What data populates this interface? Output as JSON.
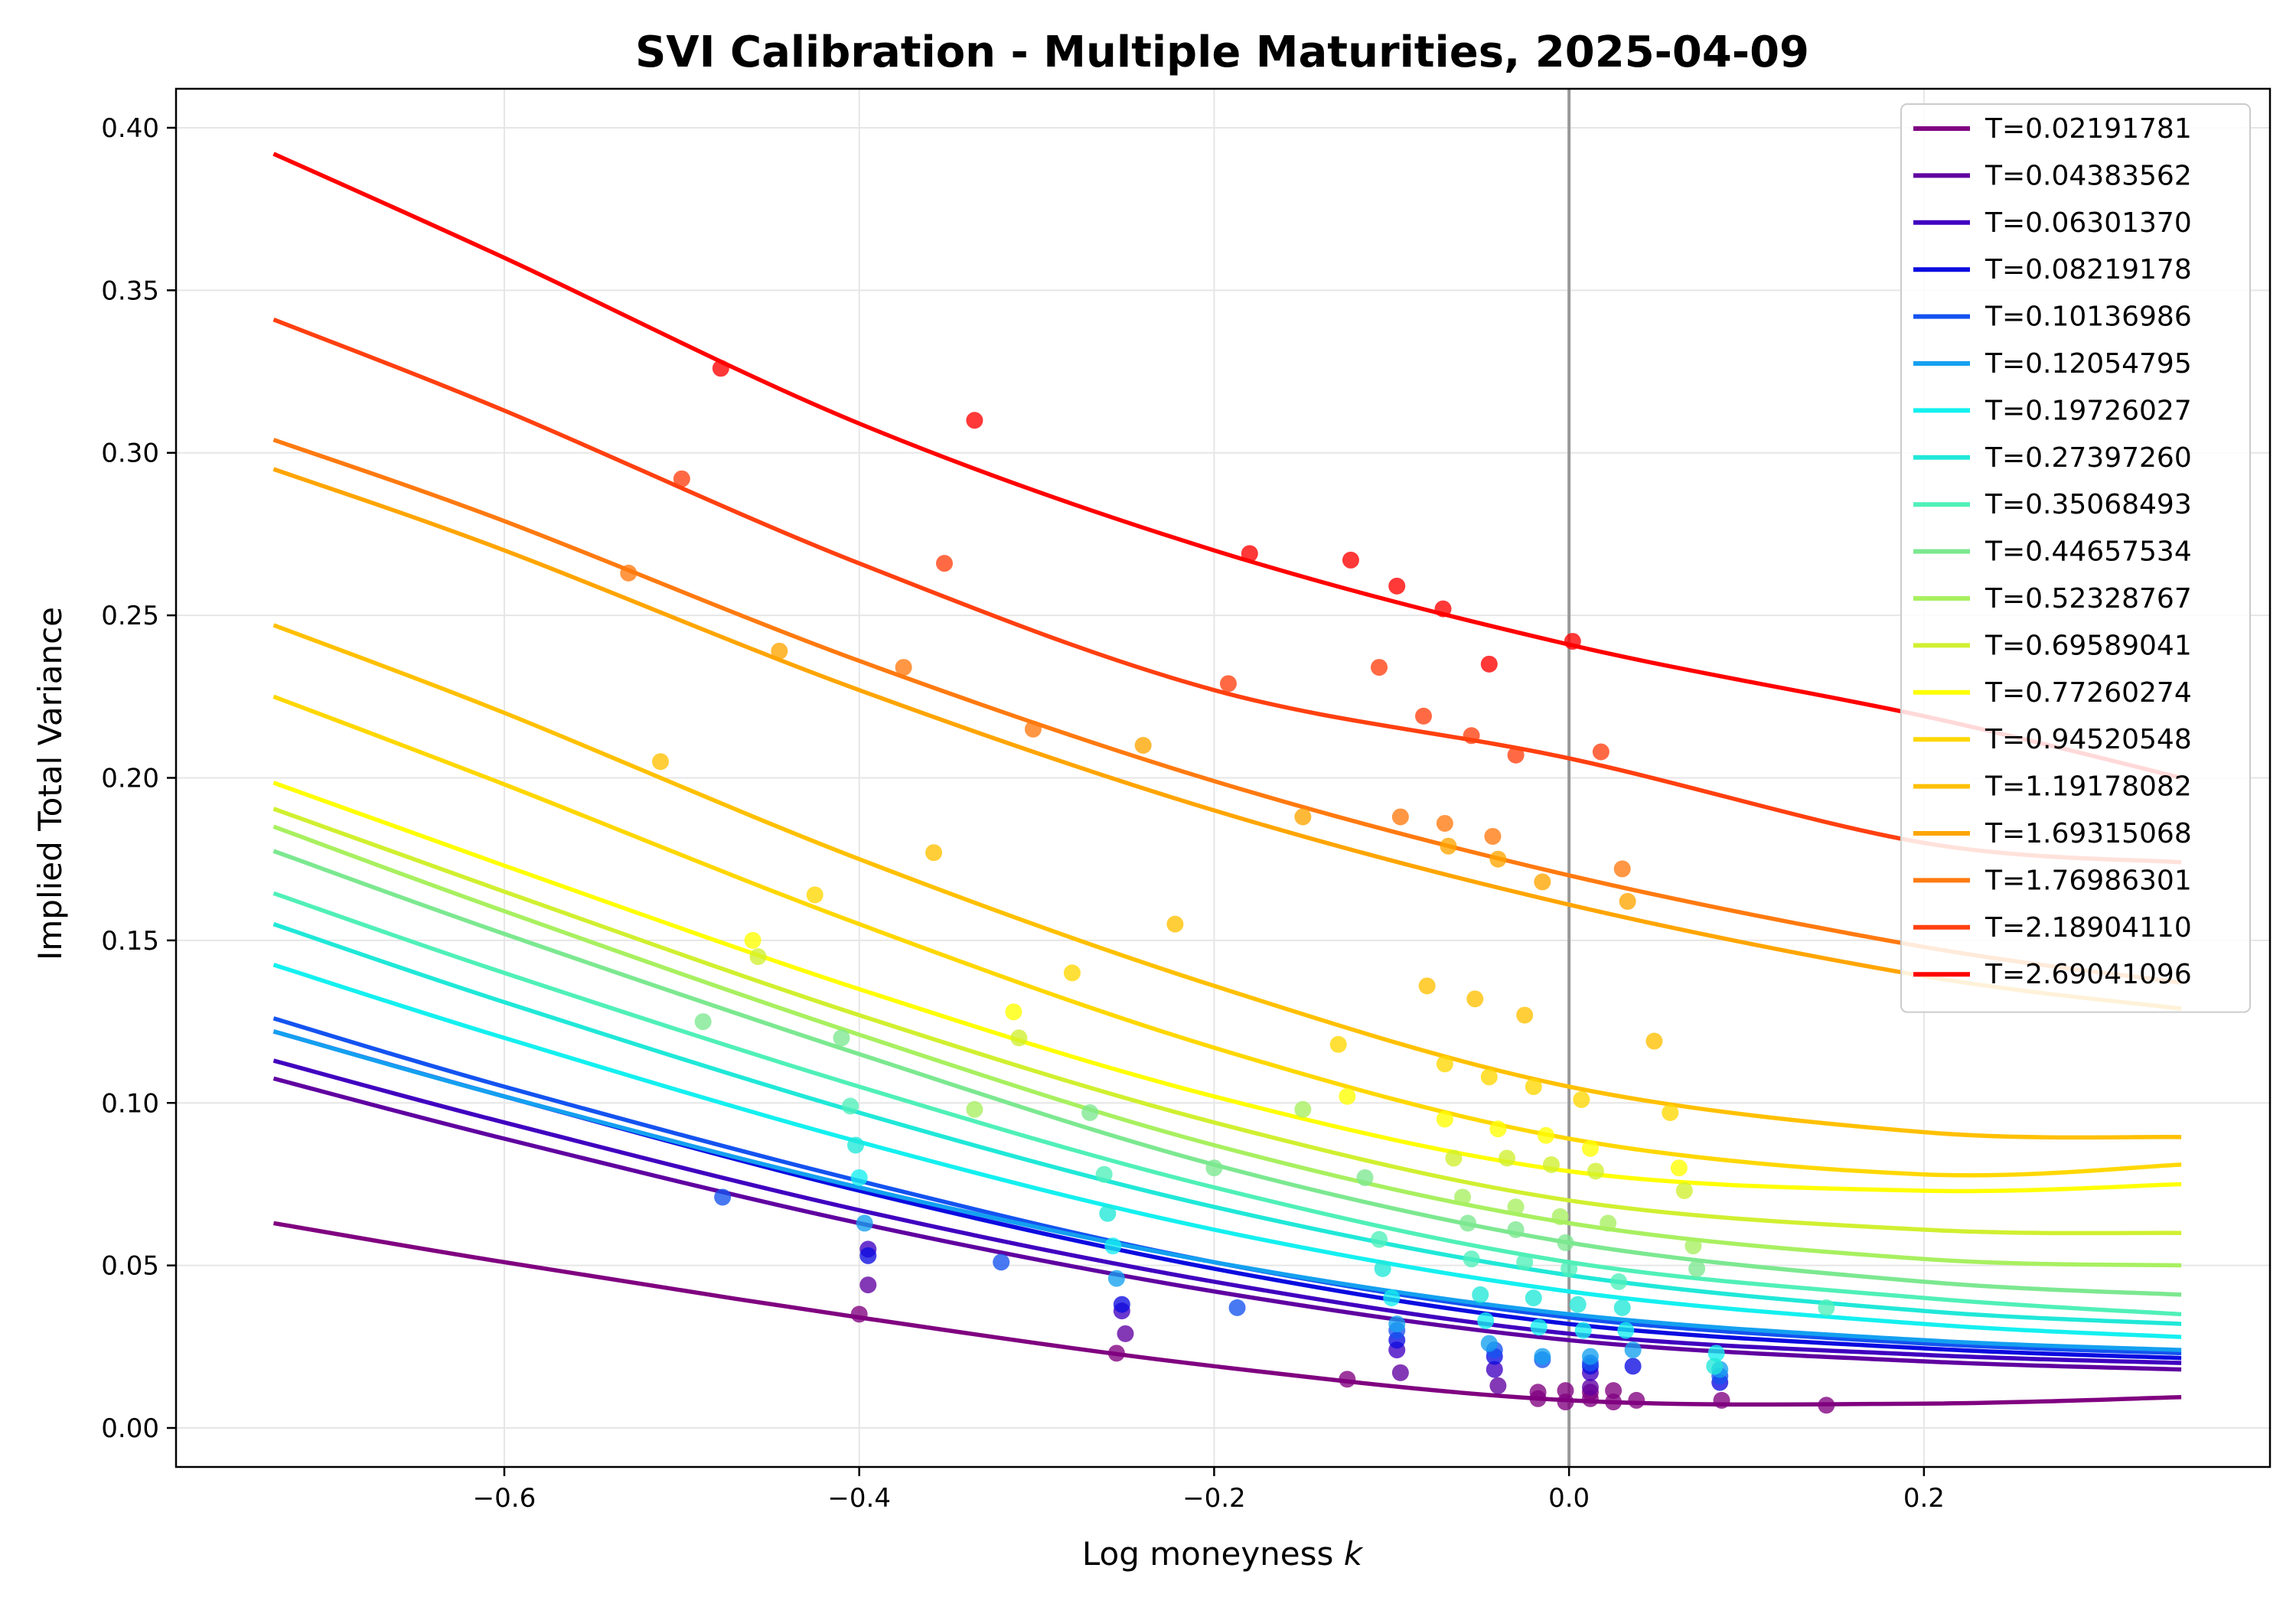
{
  "chart_data": {
    "type": "line",
    "title": "SVI Calibration - Multiple Maturities, 2025-04-09",
    "xlabel": "Log moneyness",
    "xlabel_var": "k",
    "ylabel": "Implied Total Variance",
    "xlim": [
      -0.785,
      0.395
    ],
    "ylim": [
      -0.012,
      0.412
    ],
    "xticks": [
      -0.6,
      -0.4,
      -0.2,
      0.0,
      0.2
    ],
    "xtick_labels": [
      "−0.6",
      "−0.4",
      "−0.2",
      "0.0",
      "0.2"
    ],
    "yticks": [
      0.0,
      0.05,
      0.1,
      0.15,
      0.2,
      0.25,
      0.3,
      0.35,
      0.4
    ],
    "ytick_labels": [
      "0.00",
      "0.05",
      "0.10",
      "0.15",
      "0.20",
      "0.25",
      "0.30",
      "0.35",
      "0.40"
    ],
    "grid": true,
    "vline_x": 0.0,
    "legend_position": "top-right",
    "x_curve": [
      -0.73,
      -0.6,
      -0.4,
      -0.2,
      0.0,
      0.2,
      0.345
    ],
    "series": [
      {
        "name": "T=0.02191781",
        "color": "#800080",
        "curve": [
          0.063,
          0.051,
          0.034,
          0.019,
          0.0085,
          0.0075,
          0.0095
        ],
        "points": [
          [
            -0.4,
            0.035
          ],
          [
            -0.255,
            0.023
          ],
          [
            -0.125,
            0.015
          ],
          [
            -0.0175,
            0.011
          ],
          [
            -0.0175,
            0.009
          ],
          [
            -0.002,
            0.0115
          ],
          [
            -0.002,
            0.008
          ],
          [
            0.012,
            0.011
          ],
          [
            0.012,
            0.009
          ],
          [
            0.025,
            0.0115
          ],
          [
            0.025,
            0.008
          ],
          [
            0.038,
            0.0085
          ],
          [
            0.086,
            0.0085
          ],
          [
            0.145,
            0.007
          ]
        ]
      },
      {
        "name": "T=0.04383562",
        "color": "#6000a0",
        "curve": [
          0.1075,
          0.089,
          0.063,
          0.042,
          0.027,
          0.0205,
          0.018
        ],
        "points": [
          [
            -0.395,
            0.044
          ],
          [
            -0.25,
            0.029
          ],
          [
            -0.095,
            0.017
          ],
          [
            -0.04,
            0.013
          ],
          [
            0.012,
            0.0125
          ]
        ]
      },
      {
        "name": "T=0.06301370",
        "color": "#4000c0",
        "curve": [
          0.113,
          0.094,
          0.067,
          0.045,
          0.029,
          0.0225,
          0.02
        ],
        "points": [
          [
            -0.395,
            0.055
          ],
          [
            -0.252,
            0.036
          ],
          [
            -0.097,
            0.024
          ],
          [
            -0.042,
            0.018
          ],
          [
            0.012,
            0.017
          ]
        ]
      },
      {
        "name": "T=0.08219178",
        "color": "#0b0be0",
        "curve": [
          0.122,
          0.102,
          0.073,
          0.049,
          0.032,
          0.0245,
          0.0215
        ],
        "points": [
          [
            -0.395,
            0.053
          ],
          [
            -0.252,
            0.038
          ],
          [
            -0.097,
            0.027
          ],
          [
            -0.042,
            0.022
          ],
          [
            0.012,
            0.019
          ],
          [
            0.036,
            0.019
          ],
          [
            0.085,
            0.014
          ]
        ]
      },
      {
        "name": "T=0.10136986",
        "color": "#1453f0",
        "curve": [
          0.126,
          0.105,
          0.076,
          0.051,
          0.034,
          0.026,
          0.023
        ],
        "points": [
          [
            -0.477,
            0.071
          ],
          [
            -0.32,
            0.051
          ],
          [
            -0.187,
            0.037
          ],
          [
            -0.097,
            0.03
          ],
          [
            -0.042,
            0.024
          ],
          [
            -0.015,
            0.021
          ],
          [
            0.012,
            0.02
          ],
          [
            0.085,
            0.016
          ]
        ]
      },
      {
        "name": "T=0.12054795",
        "color": "#14a0f0",
        "curve": [
          0.122,
          0.102,
          0.074,
          0.051,
          0.035,
          0.027,
          0.024
        ],
        "points": [
          [
            -0.397,
            0.063
          ],
          [
            -0.255,
            0.046
          ],
          [
            -0.097,
            0.032
          ],
          [
            -0.045,
            0.026
          ],
          [
            -0.015,
            0.022
          ],
          [
            0.012,
            0.022
          ],
          [
            0.036,
            0.024
          ],
          [
            0.085,
            0.018
          ]
        ]
      },
      {
        "name": "T=0.19726027",
        "color": "#14f0f0",
        "curve": [
          0.1425,
          0.12,
          0.088,
          0.061,
          0.042,
          0.032,
          0.028
        ],
        "points": [
          [
            -0.4,
            0.077
          ],
          [
            -0.257,
            0.056
          ],
          [
            -0.1,
            0.04
          ],
          [
            -0.047,
            0.033
          ],
          [
            -0.017,
            0.031
          ],
          [
            0.008,
            0.03
          ],
          [
            0.032,
            0.03
          ],
          [
            0.083,
            0.023
          ]
        ]
      },
      {
        "name": "T=0.27397260",
        "color": "#20e8d8",
        "curve": [
          0.155,
          0.131,
          0.097,
          0.068,
          0.047,
          0.036,
          0.032
        ],
        "points": [
          [
            -0.402,
            0.087
          ],
          [
            -0.26,
            0.066
          ],
          [
            -0.105,
            0.049
          ],
          [
            -0.05,
            0.041
          ],
          [
            -0.02,
            0.04
          ],
          [
            0.005,
            0.038
          ],
          [
            0.03,
            0.037
          ],
          [
            0.082,
            0.019
          ]
        ]
      },
      {
        "name": "T=0.35068493",
        "color": "#50f0b8",
        "curve": [
          0.1645,
          0.14,
          0.105,
          0.074,
          0.051,
          0.04,
          0.035
        ],
        "points": [
          [
            -0.405,
            0.099
          ],
          [
            -0.262,
            0.078
          ],
          [
            -0.107,
            0.058
          ],
          [
            -0.055,
            0.052
          ],
          [
            -0.025,
            0.051
          ],
          [
            0.0,
            0.049
          ],
          [
            0.028,
            0.045
          ],
          [
            0.145,
            0.037
          ]
        ]
      },
      {
        "name": "T=0.44657534",
        "color": "#7ce890",
        "curve": [
          0.1775,
          0.152,
          0.115,
          0.081,
          0.057,
          0.045,
          0.041
        ],
        "points": [
          [
            -0.488,
            0.125
          ],
          [
            -0.41,
            0.12
          ],
          [
            -0.27,
            0.097
          ],
          [
            -0.2,
            0.08
          ],
          [
            -0.115,
            0.077
          ],
          [
            -0.057,
            0.063
          ],
          [
            -0.03,
            0.061
          ],
          [
            -0.002,
            0.057
          ],
          [
            0.072,
            0.049
          ]
        ]
      },
      {
        "name": "T=0.52328767",
        "color": "#a8f060",
        "curve": [
          0.185,
          0.159,
          0.121,
          0.087,
          0.063,
          0.052,
          0.05
        ],
        "points": [
          [
            -0.335,
            0.098
          ],
          [
            -0.15,
            0.098
          ],
          [
            -0.06,
            0.071
          ],
          [
            -0.03,
            0.068
          ],
          [
            -0.005,
            0.065
          ],
          [
            0.022,
            0.063
          ],
          [
            0.07,
            0.056
          ]
        ]
      },
      {
        "name": "T=0.69589041",
        "color": "#d0f030",
        "curve": [
          0.1905,
          0.165,
          0.127,
          0.094,
          0.07,
          0.061,
          0.06
        ],
        "points": [
          [
            -0.457,
            0.145
          ],
          [
            -0.31,
            0.12
          ],
          [
            -0.065,
            0.083
          ],
          [
            -0.035,
            0.083
          ],
          [
            -0.01,
            0.081
          ],
          [
            0.015,
            0.079
          ],
          [
            0.065,
            0.073
          ]
        ]
      },
      {
        "name": "T=0.77260274",
        "color": "#ffff00",
        "curve": [
          0.1985,
          0.173,
          0.135,
          0.102,
          0.079,
          0.073,
          0.075
        ],
        "points": [
          [
            -0.46,
            0.15
          ],
          [
            -0.313,
            0.128
          ],
          [
            -0.125,
            0.102
          ],
          [
            -0.07,
            0.095
          ],
          [
            -0.04,
            0.092
          ],
          [
            -0.013,
            0.09
          ],
          [
            0.012,
            0.086
          ],
          [
            0.062,
            0.08
          ]
        ]
      },
      {
        "name": "T=0.94520548",
        "color": "#ffd700",
        "curve": [
          0.225,
          0.198,
          0.155,
          0.117,
          0.089,
          0.078,
          0.081
        ],
        "points": [
          [
            -0.425,
            0.164
          ],
          [
            -0.28,
            0.14
          ],
          [
            -0.13,
            0.118
          ],
          [
            -0.07,
            0.112
          ],
          [
            -0.045,
            0.108
          ],
          [
            -0.02,
            0.105
          ],
          [
            0.007,
            0.101
          ],
          [
            0.057,
            0.097
          ]
        ]
      },
      {
        "name": "T=1.19178082",
        "color": "#ffc000",
        "curve": [
          0.247,
          0.22,
          0.175,
          0.136,
          0.105,
          0.091,
          0.0895
        ],
        "points": [
          [
            -0.512,
            0.205
          ],
          [
            -0.358,
            0.177
          ],
          [
            -0.222,
            0.155
          ],
          [
            -0.08,
            0.136
          ],
          [
            -0.053,
            0.132
          ],
          [
            -0.025,
            0.127
          ],
          [
            0.048,
            0.119
          ]
        ]
      },
      {
        "name": "T=1.69315068",
        "color": "#ffa500",
        "curve": [
          0.295,
          0.27,
          0.227,
          0.19,
          0.161,
          0.139,
          0.129
        ],
        "points": [
          [
            -0.445,
            0.239
          ],
          [
            -0.24,
            0.21
          ],
          [
            -0.15,
            0.188
          ],
          [
            -0.068,
            0.179
          ],
          [
            -0.04,
            0.175
          ],
          [
            -0.015,
            0.168
          ],
          [
            0.033,
            0.162
          ]
        ]
      },
      {
        "name": "T=1.76986301",
        "color": "#ff7a10",
        "curve": [
          0.304,
          0.279,
          0.236,
          0.199,
          0.17,
          0.148,
          0.137
        ],
        "points": [
          [
            -0.53,
            0.263
          ],
          [
            -0.375,
            0.234
          ],
          [
            -0.302,
            0.215
          ],
          [
            -0.095,
            0.188
          ],
          [
            -0.07,
            0.186
          ],
          [
            -0.043,
            0.182
          ],
          [
            0.03,
            0.172
          ]
        ]
      },
      {
        "name": "T=2.18904110",
        "color": "#ff4010",
        "curve": [
          0.341,
          0.313,
          0.266,
          0.227,
          0.206,
          0.18,
          0.174
        ],
        "points": [
          [
            -0.5,
            0.292
          ],
          [
            -0.352,
            0.266
          ],
          [
            -0.192,
            0.229
          ],
          [
            -0.107,
            0.234
          ],
          [
            -0.082,
            0.219
          ],
          [
            -0.055,
            0.213
          ],
          [
            -0.03,
            0.207
          ],
          [
            0.018,
            0.208
          ]
        ]
      },
      {
        "name": "T=2.69041096",
        "color": "#ff0000",
        "curve": [
          0.392,
          0.36,
          0.309,
          0.27,
          0.241,
          0.219,
          0.2
        ],
        "points": [
          [
            -0.478,
            0.326
          ],
          [
            -0.335,
            0.31
          ],
          [
            -0.18,
            0.269
          ],
          [
            -0.123,
            0.267
          ],
          [
            -0.097,
            0.259
          ],
          [
            -0.071,
            0.252
          ],
          [
            -0.045,
            0.235
          ],
          [
            0.002,
            0.242
          ]
        ]
      }
    ]
  }
}
